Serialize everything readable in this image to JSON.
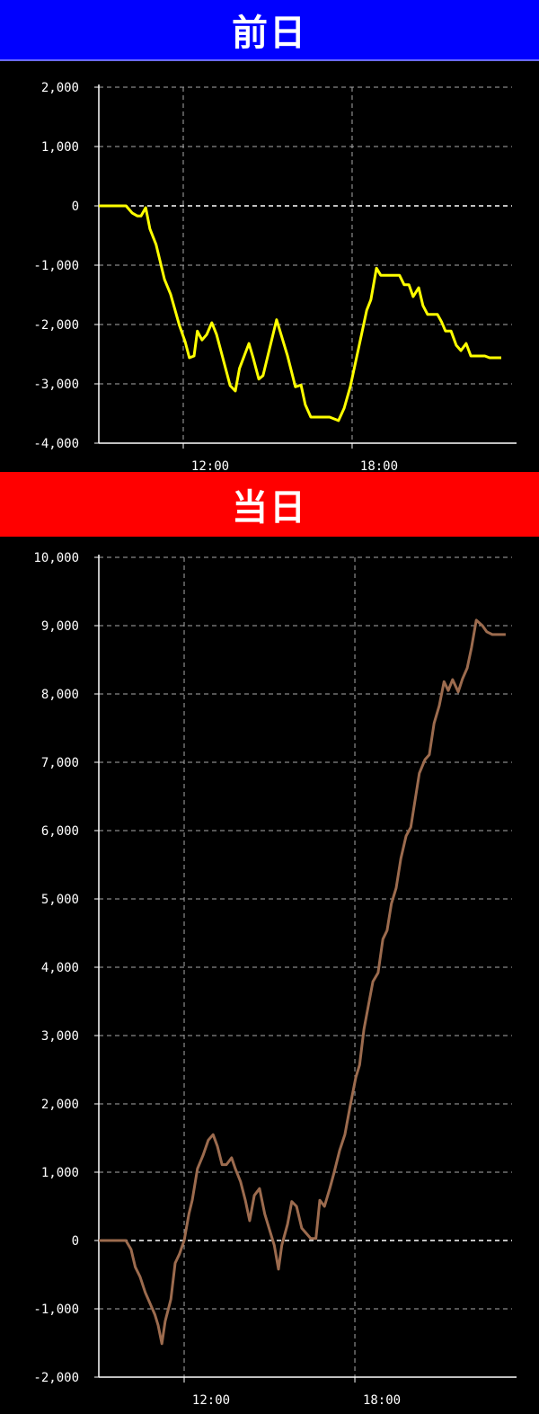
{
  "headers": {
    "previous_day": "前日",
    "current_day": "当日"
  },
  "colors": {
    "previous_header": "#0000ff",
    "current_header": "#ff0000",
    "previous_line": "#ffff00",
    "current_line": "#9c6b4e"
  },
  "chart_data": [
    {
      "type": "line",
      "title": "前日",
      "ylim": [
        -4000,
        2000
      ],
      "yticks": [
        "2,000",
        "1,000",
        "0",
        "-1,000",
        "-2,000",
        "-3,000",
        "-4,000"
      ],
      "ytick_values": [
        2000,
        1000,
        0,
        -1000,
        -2000,
        -3000,
        -4000
      ],
      "xlim": [
        "09:00",
        "23:40"
      ],
      "xticks": [
        "12:00",
        "18:00"
      ],
      "grid": true,
      "x": [
        "09:00",
        "09:58",
        "10:11",
        "10:22",
        "10:30",
        "10:40",
        "10:49",
        "11:02",
        "11:20",
        "11:33",
        "11:52",
        "12:04",
        "12:13",
        "12:23",
        "12:30",
        "12:40",
        "12:50",
        "13:01",
        "13:11",
        "13:40",
        "13:51",
        "14:00",
        "14:20",
        "14:29",
        "14:41",
        "14:50",
        "15:19",
        "15:42",
        "15:59",
        "16:11",
        "16:20",
        "16:32",
        "17:12",
        "17:31",
        "17:43",
        "17:56",
        "18:16",
        "18:31",
        "18:40",
        "18:52",
        "19:01",
        "19:41",
        "19:51",
        "20:01",
        "20:10",
        "20:22",
        "20:31",
        "20:41",
        "21:02",
        "21:11",
        "21:19",
        "21:31",
        "21:42",
        "21:52",
        "22:03",
        "22:13",
        "22:43",
        "22:53",
        "23:18"
      ],
      "series": [
        {
          "values": [
            0,
            0,
            -120,
            -170,
            -170,
            -30,
            -390,
            -650,
            -1240,
            -1490,
            -2020,
            -2290,
            -2560,
            -2530,
            -2110,
            -2260,
            -2170,
            -1970,
            -2170,
            -3030,
            -3120,
            -2740,
            -2320,
            -2560,
            -2920,
            -2860,
            -1920,
            -2520,
            -3050,
            -3020,
            -3350,
            -3560,
            -3560,
            -3620,
            -3410,
            -3050,
            -2320,
            -1760,
            -1580,
            -1050,
            -1170,
            -1170,
            -1330,
            -1330,
            -1530,
            -1380,
            -1680,
            -1830,
            -1830,
            -1960,
            -2110,
            -2110,
            -2350,
            -2440,
            -2320,
            -2530,
            -2530,
            -2560,
            -2560
          ]
        }
      ]
    },
    {
      "type": "line",
      "title": "当日",
      "ylim": [
        -2000,
        10000
      ],
      "yticks": [
        "10,000",
        "9,000",
        "8,000",
        "7,000",
        "6,000",
        "5,000",
        "4,000",
        "3,000",
        "2,000",
        "1,000",
        "0",
        "-1,000",
        "-2,000"
      ],
      "ytick_values": [
        10000,
        9000,
        8000,
        7000,
        6000,
        5000,
        4000,
        3000,
        2000,
        1000,
        0,
        -1000,
        -2000
      ],
      "xlim": [
        "09:00",
        "23:40"
      ],
      "xticks": [
        "12:00",
        "18:00"
      ],
      "grid": true,
      "x": [
        "09:00",
        "09:57",
        "10:08",
        "10:17",
        "10:27",
        "10:38",
        "10:58",
        "11:05",
        "11:13",
        "11:20",
        "11:32",
        "11:41",
        "11:50",
        "12:00",
        "12:10",
        "12:17",
        "12:28",
        "12:40",
        "12:51",
        "13:01",
        "13:10",
        "13:20",
        "13:29",
        "13:40",
        "13:48",
        "13:59",
        "14:09",
        "14:18",
        "14:28",
        "14:39",
        "14:50",
        "15:10",
        "15:19",
        "15:26",
        "15:38",
        "15:47",
        "15:57",
        "16:08",
        "16:27",
        "16:38",
        "16:46",
        "16:56",
        "17:07",
        "17:16",
        "17:28",
        "17:39",
        "17:50",
        "18:02",
        "18:10",
        "18:19",
        "18:28",
        "18:38",
        "18:49",
        "18:59",
        "19:08",
        "19:17",
        "19:27",
        "19:37",
        "19:48",
        "19:58",
        "20:07",
        "20:16",
        "20:28",
        "20:37",
        "20:47",
        "20:58",
        "21:08",
        "21:17",
        "21:26",
        "21:38",
        "21:47",
        "21:57",
        "22:06",
        "22:16",
        "22:29",
        "22:38",
        "22:50",
        "23:18"
      ],
      "series": [
        {
          "values": [
            0,
            0,
            -130,
            -390,
            -530,
            -760,
            -1080,
            -1240,
            -1510,
            -1180,
            -860,
            -330,
            -200,
            0,
            390,
            590,
            1050,
            1250,
            1470,
            1550,
            1380,
            1110,
            1110,
            1210,
            1050,
            860,
            590,
            290,
            660,
            760,
            390,
            -70,
            -420,
            -70,
            240,
            570,
            500,
            180,
            30,
            30,
            590,
            500,
            760,
            990,
            1320,
            1550,
            1970,
            2390,
            2570,
            3090,
            3420,
            3790,
            3920,
            4410,
            4540,
            4930,
            5160,
            5590,
            5920,
            6050,
            6450,
            6840,
            7040,
            7110,
            7570,
            7830,
            8180,
            8050,
            8210,
            8030,
            8220,
            8380,
            8680,
            9080,
            9000,
            8910,
            8870,
            8870
          ]
        }
      ]
    }
  ]
}
